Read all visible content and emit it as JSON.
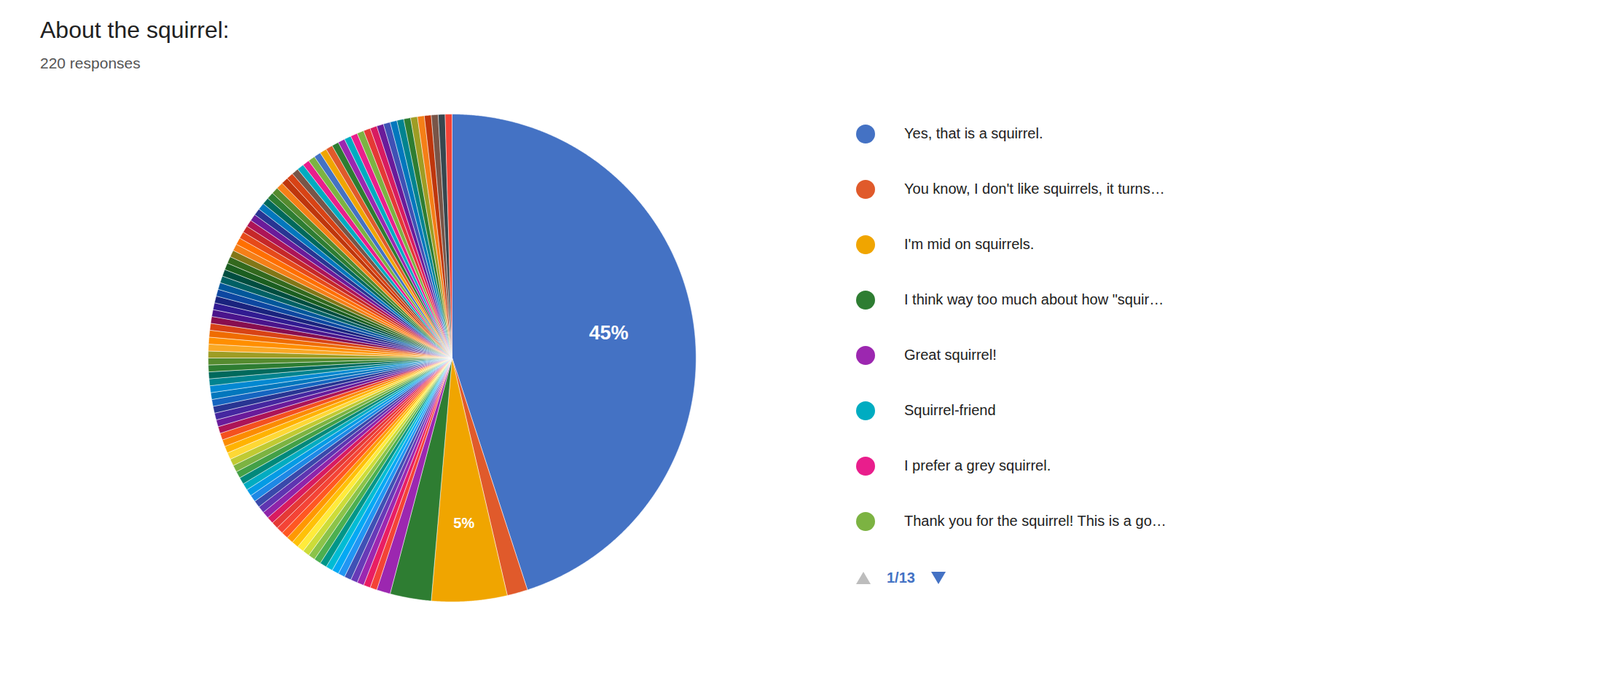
{
  "chart_data": {
    "type": "pie",
    "title": "About the squirrel:",
    "subtitle": "220 responses",
    "values": [
      45,
      1.3636363636363635,
      5,
      2.727272727272727,
      0.9090909090909091,
      0.45454545454545453,
      0.45454545454545453,
      0.45454545454545453,
      0.45454545454545453,
      0.45454545454545453,
      0.45454545454545453,
      0.45454545454545453,
      0.45454545454545453,
      0.45454545454545453,
      0.45454545454545453,
      0.45454545454545453,
      0.45454545454545453,
      0.45454545454545453,
      0.45454545454545453,
      0.45454545454545453,
      0.45454545454545453,
      0.45454545454545453,
      0.45454545454545453,
      0.45454545454545453,
      0.45454545454545453,
      0.45454545454545453,
      0.45454545454545453,
      0.45454545454545453,
      0.45454545454545453,
      0.45454545454545453,
      0.45454545454545453,
      0.45454545454545453,
      0.45454545454545453,
      0.45454545454545453,
      0.45454545454545453,
      0.45454545454545453,
      0.45454545454545453,
      0.45454545454545453,
      0.45454545454545453,
      0.45454545454545453,
      0.45454545454545453,
      0.45454545454545453,
      0.45454545454545453,
      0.45454545454545453,
      0.45454545454545453,
      0.45454545454545453,
      0.45454545454545453,
      0.45454545454545453,
      0.45454545454545453,
      0.45454545454545453,
      0.45454545454545453,
      0.45454545454545453,
      0.45454545454545453,
      0.45454545454545453,
      0.45454545454545453,
      0.45454545454545453,
      0.45454545454545453,
      0.45454545454545453,
      0.45454545454545453,
      0.45454545454545453,
      0.45454545454545453,
      0.45454545454545453,
      0.45454545454545453,
      0.45454545454545453,
      0.45454545454545453,
      0.45454545454545453,
      0.45454545454545453,
      0.45454545454545453,
      0.45454545454545453,
      0.45454545454545453,
      0.45454545454545453,
      0.45454545454545453,
      0.45454545454545453,
      0.45454545454545453,
      0.45454545454545453,
      0.45454545454545453,
      0.45454545454545453,
      0.45454545454545453,
      0.45454545454545453,
      0.45454545454545453,
      0.45454545454545453,
      0.45454545454545453,
      0.45454545454545453,
      0.45454545454545453,
      0.45454545454545453,
      0.45454545454545453,
      0.45454545454545453,
      0.45454545454545453,
      0.45454545454545453,
      0.45454545454545453,
      0.45454545454545453,
      0.45454545454545453,
      0.45454545454545453,
      0.45454545454545453,
      0.45454545454545453,
      0.45454545454545453,
      0.45454545454545453,
      0.45454545454545453,
      0.45454545454545453,
      0.45454545454545453,
      0.45454545454545453,
      0.45454545454545453,
      0.45454545454545453,
      0.45454545454545453
    ],
    "colors": [
      "#4472C4",
      "#E05A2B",
      "#F0A500",
      "#2E7D32",
      "#9C27B0",
      "#F44336",
      "#E91E63",
      "#9C27B0",
      "#673AB7",
      "#3F51B5",
      "#2196F3",
      "#03A9F4",
      "#00BCD4",
      "#009688",
      "#4CAF50",
      "#8BC34A",
      "#CDDC39",
      "#FFEB3B",
      "#FFC107",
      "#FF9800",
      "#FF5722",
      "#F44336",
      "#E53935",
      "#D81B60",
      "#8E24AA",
      "#5E35B1",
      "#3949AB",
      "#1E88E5",
      "#039BE5",
      "#00ACC1",
      "#00897B",
      "#43A047",
      "#7CB342",
      "#C0CA33",
      "#FDD835",
      "#FFB300",
      "#FB8C00",
      "#F4511E",
      "#AD1457",
      "#6A1B9A",
      "#4527A0",
      "#283593",
      "#1565C0",
      "#0277BD",
      "#0288D1",
      "#00838F",
      "#00695C",
      "#2E7D32",
      "#558B2F",
      "#9E9D24",
      "#F9A825",
      "#FF8F00",
      "#EF6C00",
      "#D84315",
      "#880E4F",
      "#4A148C",
      "#311B92",
      "#1A237E",
      "#0D47A1",
      "#01579B",
      "#006064",
      "#004D40",
      "#1B5E20",
      "#33691E",
      "#827717",
      "#F57F17",
      "#FF6F00",
      "#E64A19",
      "#C62828",
      "#AD1457",
      "#6A1B9A",
      "#283593",
      "#0277BD",
      "#00695C",
      "#2E7D32",
      "#558B2F",
      "#F57F17",
      "#BF360C",
      "#D84315",
      "#795548",
      "#00ACC1",
      "#E91E8C",
      "#7CB342",
      "#4472C4",
      "#F0A500",
      "#E05A2B",
      "#2E7D32",
      "#9C27B0",
      "#00ACC1",
      "#E91E8C",
      "#7CB342",
      "#E53935",
      "#D81B60",
      "#6A1B9A",
      "#3F51B5",
      "#0277BD",
      "#00838F",
      "#2E7D32",
      "#9E9D24",
      "#F57F17",
      "#BF360C",
      "#795548",
      "#37474F",
      "#F44336"
    ],
    "value_labels": [
      "45%",
      null,
      "5%",
      null,
      null,
      null,
      null,
      null,
      null,
      null,
      null,
      null,
      null,
      null,
      null,
      null,
      null,
      null,
      null,
      null,
      null,
      null,
      null,
      null,
      null,
      null,
      null,
      null,
      null,
      null,
      null,
      null,
      null,
      null,
      null,
      null,
      null,
      null,
      null,
      null,
      null,
      null,
      null,
      null,
      null,
      null,
      null,
      null,
      null,
      null,
      null,
      null,
      null,
      null,
      null,
      null,
      null,
      null,
      null,
      null,
      null,
      null,
      null,
      null,
      null,
      null,
      null,
      null,
      null,
      null,
      null,
      null,
      null,
      null,
      null,
      null,
      null,
      null,
      null,
      null,
      null,
      null,
      null,
      null,
      null,
      null,
      null,
      null,
      null,
      null,
      null,
      null,
      null,
      null,
      null,
      null,
      null,
      null,
      null,
      null,
      null,
      null,
      null,
      null
    ],
    "data_labels": true,
    "legend": "right",
    "legend_entries": [
      {
        "name": "Yes, that is a squirrel.",
        "color": "#4472C4"
      },
      {
        "name": "You know, I don't like squirrels, it turns…",
        "color": "#E05A2B"
      },
      {
        "name": "I'm mid on squirrels.",
        "color": "#F0A500"
      },
      {
        "name": "I think way too much about how \"squir…",
        "color": "#2E7D32"
      },
      {
        "name": "Great squirrel!",
        "color": "#9C27B0"
      },
      {
        "name": "Squirrel-friend",
        "color": "#00ACC1"
      },
      {
        "name": "I prefer a grey squirrel.",
        "color": "#E91E8C"
      },
      {
        "name": "Thank you for the squirrel! This is a go…",
        "color": "#7CB342"
      }
    ],
    "annotations": [
      "1/13"
    ]
  }
}
